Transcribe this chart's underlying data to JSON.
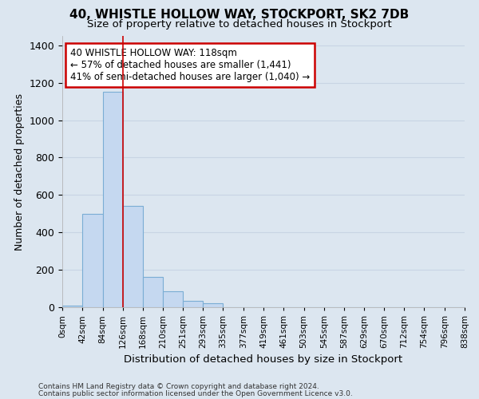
{
  "title": "40, WHISTLE HOLLOW WAY, STOCKPORT, SK2 7DB",
  "subtitle": "Size of property relative to detached houses in Stockport",
  "xlabel": "Distribution of detached houses by size in Stockport",
  "ylabel": "Number of detached properties",
  "footnote1": "Contains HM Land Registry data © Crown copyright and database right 2024.",
  "footnote2": "Contains public sector information licensed under the Open Government Licence v3.0.",
  "bin_edges": [
    0,
    42,
    84,
    126,
    168,
    210,
    251,
    293,
    335,
    377,
    419,
    461,
    503,
    545,
    587,
    629,
    670,
    712,
    754,
    796,
    838
  ],
  "bin_labels": [
    "0sqm",
    "42sqm",
    "84sqm",
    "126sqm",
    "168sqm",
    "210sqm",
    "251sqm",
    "293sqm",
    "335sqm",
    "377sqm",
    "419sqm",
    "461sqm",
    "503sqm",
    "545sqm",
    "587sqm",
    "629sqm",
    "670sqm",
    "712sqm",
    "754sqm",
    "796sqm",
    "838sqm"
  ],
  "bar_values": [
    10,
    500,
    1150,
    540,
    160,
    85,
    35,
    20,
    0,
    0,
    0,
    0,
    0,
    0,
    0,
    0,
    0,
    0,
    0,
    0
  ],
  "bar_color": "#c5d8f0",
  "bar_edge_color": "#7aadd4",
  "grid_color": "#c8d4e4",
  "background_color": "#dce6f0",
  "annotation_line1": "40 WHISTLE HOLLOW WAY: 118sqm",
  "annotation_line2": "← 57% of detached houses are smaller (1,441)",
  "annotation_line3": "41% of semi-detached houses are larger (1,040) →",
  "annotation_box_color": "white",
  "annotation_box_edge_color": "#cc0000",
  "property_line_x": 126,
  "ylim_max": 1450,
  "yticks": [
    0,
    200,
    400,
    600,
    800,
    1000,
    1200,
    1400
  ]
}
